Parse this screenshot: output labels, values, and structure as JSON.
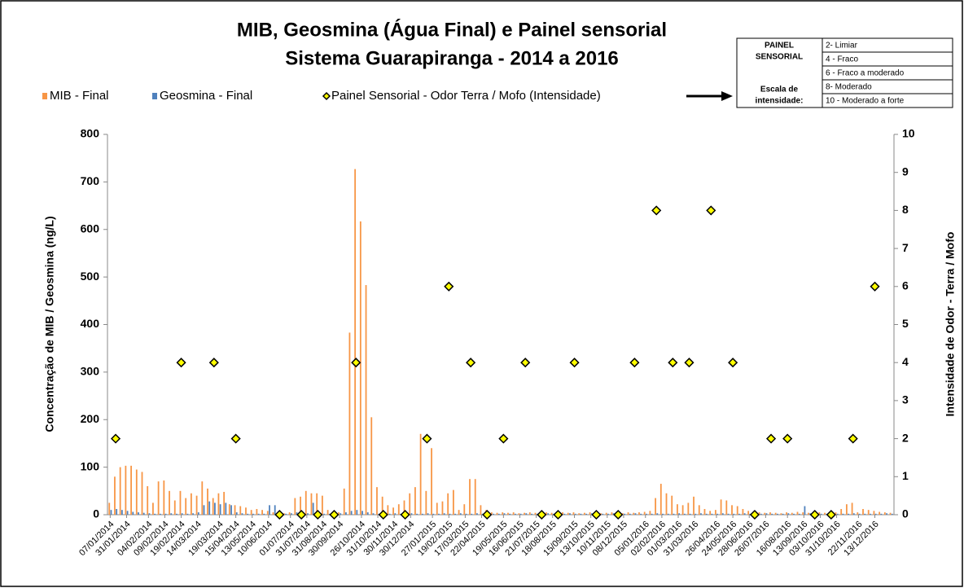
{
  "chart_data": {
    "type": "bar",
    "title_lines": [
      "MIB, Geosmina (Água Final) e Painel sensorial",
      "Sistema Guarapiranga - 2014 a 2016"
    ],
    "ylabel": "Concentração de MIB / Geosmina  (ng/L)",
    "y2label": "Intensidade de Odor - Terra / Mofo",
    "ylim": [
      0,
      800
    ],
    "yticks": [
      0,
      100,
      200,
      300,
      400,
      500,
      600,
      700,
      800
    ],
    "y2lim": [
      0,
      10
    ],
    "y2ticks": [
      0,
      1,
      2,
      3,
      4,
      5,
      6,
      7,
      8,
      9,
      10
    ],
    "grid": false,
    "legend_position": "top",
    "panel_table": {
      "header_lines": [
        "PAINEL",
        "SENSORIAL"
      ],
      "scale_lines": [
        "Escala de",
        "intensidade:"
      ],
      "levels": [
        "2- Limiar",
        "4 - Fraco",
        "6 - Fraco a moderado",
        "8- Moderado",
        "10 - Moderado a forte"
      ]
    },
    "categories": [
      "07/01/2014",
      null,
      null,
      "31/01/2014",
      null,
      null,
      null,
      "04/02/2014",
      null,
      null,
      "09/02/2014",
      null,
      null,
      "19/02/2014",
      null,
      null,
      "14/03/2014",
      null,
      null,
      null,
      "19/03/2014",
      null,
      null,
      "15/04/2014",
      null,
      null,
      "13/05/2014",
      null,
      null,
      "10/06/2014",
      null,
      null,
      null,
      "01/07/2014",
      null,
      null,
      "31/07/2014",
      null,
      null,
      "31/08/2014",
      null,
      null,
      "30/09/2014",
      null,
      null,
      null,
      "26/10/2014",
      null,
      null,
      "31/10/2014",
      null,
      null,
      "30/11/2014",
      null,
      null,
      "30/12/2014",
      null,
      null,
      null,
      "27/01/2015",
      null,
      null,
      "19/02/2015",
      null,
      null,
      "17/03/2015",
      null,
      null,
      "22/04/2015",
      null,
      null,
      null,
      "19/05/2015",
      null,
      null,
      "16/06/2015",
      null,
      null,
      "21/07/2015",
      null,
      null,
      "18/08/2015",
      null,
      null,
      null,
      "15/09/2015",
      null,
      null,
      "13/10/2015",
      null,
      null,
      "10/11/2015",
      null,
      null,
      "08/12/2015",
      null,
      null,
      null,
      "05/01/2016",
      null,
      null,
      "02/02/2016",
      null,
      null,
      "01/03/2016",
      null,
      null,
      "31/03/2016",
      null,
      null,
      null,
      "26/04/2016",
      null,
      null,
      "24/05/2016",
      null,
      null,
      "28/06/2016",
      null,
      null,
      "26/07/2016",
      null,
      null,
      null,
      "16/08/2016",
      null,
      null,
      "13/09/2016",
      null,
      null,
      "03/10/2016",
      null,
      null,
      "31/10/2016",
      null,
      null,
      null,
      "22/11/2016",
      null,
      null,
      "13/12/2016",
      null,
      null,
      null
    ],
    "series": [
      {
        "name": "MIB - Final",
        "type": "bar",
        "color": "#f79646",
        "values": [
          25,
          80,
          100,
          103,
          103,
          95,
          90,
          60,
          25,
          70,
          72,
          50,
          30,
          50,
          35,
          45,
          40,
          70,
          55,
          35,
          45,
          48,
          22,
          20,
          18,
          15,
          10,
          12,
          10,
          8,
          5,
          5,
          3,
          5,
          35,
          38,
          50,
          45,
          45,
          40,
          10,
          5,
          5,
          55,
          383,
          727,
          617,
          483,
          205,
          58,
          38,
          20,
          15,
          22,
          30,
          45,
          58,
          170,
          50,
          140,
          25,
          28,
          45,
          52,
          10,
          22,
          75,
          75,
          20,
          10,
          5,
          4,
          5,
          4,
          5,
          3,
          4,
          5,
          4,
          3,
          5,
          4,
          3,
          5,
          4,
          5,
          3,
          4,
          5,
          4,
          3,
          4,
          5,
          4,
          3,
          5,
          4,
          5,
          6,
          8,
          35,
          65,
          45,
          40,
          22,
          20,
          25,
          38,
          20,
          12,
          8,
          10,
          32,
          30,
          20,
          18,
          12,
          8,
          6,
          5,
          4,
          5,
          4,
          3,
          5,
          4,
          6,
          5,
          4,
          3,
          5,
          4,
          6,
          5,
          12,
          22,
          25,
          5,
          12,
          10,
          8,
          6,
          5,
          4
        ]
      },
      {
        "name": "Geosmina - Final",
        "type": "bar",
        "color": "#4f81bd",
        "values": [
          10,
          12,
          10,
          8,
          6,
          5,
          4,
          3,
          2,
          2,
          2,
          3,
          2,
          3,
          2,
          3,
          5,
          20,
          28,
          25,
          22,
          25,
          20,
          5,
          3,
          2,
          2,
          2,
          2,
          20,
          20,
          2,
          2,
          3,
          5,
          2,
          3,
          25,
          3,
          2,
          2,
          2,
          3,
          5,
          8,
          10,
          8,
          5,
          3,
          2,
          2,
          2,
          3,
          2,
          2,
          3,
          2,
          2,
          3,
          2,
          2,
          3,
          2,
          2,
          3,
          2,
          2,
          3,
          2,
          2,
          2,
          2,
          3,
          2,
          2,
          2,
          3,
          2,
          2,
          2,
          3,
          2,
          2,
          2,
          3,
          2,
          2,
          2,
          3,
          2,
          2,
          2,
          3,
          2,
          2,
          2,
          3,
          2,
          2,
          2,
          3,
          2,
          2,
          2,
          3,
          2,
          2,
          2,
          3,
          2,
          2,
          2,
          3,
          2,
          2,
          2,
          3,
          2,
          2,
          2,
          3,
          2,
          2,
          2,
          3,
          2,
          2,
          18,
          3,
          2,
          2,
          2,
          3,
          2,
          2,
          2,
          3,
          2,
          2,
          2,
          2,
          2,
          3,
          2
        ]
      },
      {
        "name": "Painel Sensorial - Odor Terra / Mofo (Intensidade)",
        "type": "scatter",
        "axis": "y2",
        "color": "#ffff00",
        "edge_color": "#000000",
        "values": [
          null,
          2,
          null,
          null,
          null,
          null,
          null,
          null,
          null,
          null,
          null,
          null,
          null,
          4,
          null,
          null,
          null,
          null,
          null,
          4,
          null,
          null,
          null,
          2,
          null,
          null,
          null,
          null,
          null,
          null,
          null,
          0,
          null,
          null,
          null,
          0,
          null,
          null,
          0,
          null,
          null,
          0,
          null,
          null,
          null,
          4,
          null,
          null,
          null,
          null,
          0,
          null,
          null,
          null,
          0,
          null,
          null,
          null,
          2,
          null,
          null,
          null,
          6,
          null,
          null,
          null,
          4,
          null,
          null,
          0,
          null,
          null,
          2,
          null,
          null,
          null,
          4,
          null,
          null,
          0,
          null,
          null,
          0,
          null,
          null,
          4,
          null,
          null,
          null,
          0,
          null,
          null,
          null,
          0,
          null,
          null,
          4,
          null,
          null,
          null,
          8,
          null,
          null,
          4,
          null,
          null,
          4,
          null,
          null,
          null,
          8,
          null,
          null,
          null,
          4,
          null,
          null,
          null,
          0,
          null,
          null,
          2,
          null,
          null,
          2,
          null,
          null,
          null,
          null,
          0,
          null,
          null,
          0,
          null,
          null,
          null,
          2,
          null,
          null,
          null,
          6,
          null,
          null,
          null
        ]
      }
    ]
  }
}
